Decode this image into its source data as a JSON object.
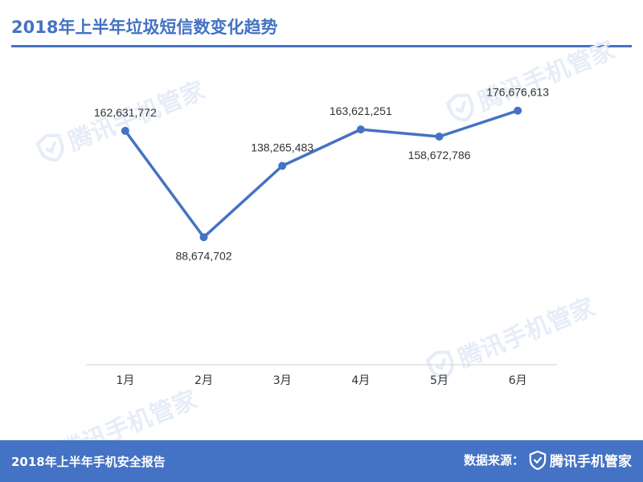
{
  "header": {
    "title": "2018年上半年垃圾短信数变化趋势"
  },
  "watermark": {
    "text": "腾讯手机管家"
  },
  "footer": {
    "report": "2018年上半年手机安全报告",
    "source_label": "数据来源：",
    "brand": "腾讯手机管家"
  },
  "colors": {
    "accent": "#4472c4",
    "line": "#4472c4",
    "watermark": "#e6edf8"
  },
  "chart_data": {
    "type": "line",
    "categories": [
      "1月",
      "2月",
      "3月",
      "4月",
      "5月",
      "6月"
    ],
    "values": [
      162631772,
      88674702,
      138265483,
      163621251,
      158672786,
      176676613
    ],
    "data_labels": [
      "162,631,772",
      "88,674,702",
      "138,265,483",
      "163,621,251",
      "158,672,786",
      "176,676,613"
    ],
    "title": "2018年上半年垃圾短信数变化趋势",
    "xlabel": "",
    "ylabel": "",
    "ylim": [
      0,
      200000000
    ],
    "grid": false,
    "legend": "none"
  }
}
